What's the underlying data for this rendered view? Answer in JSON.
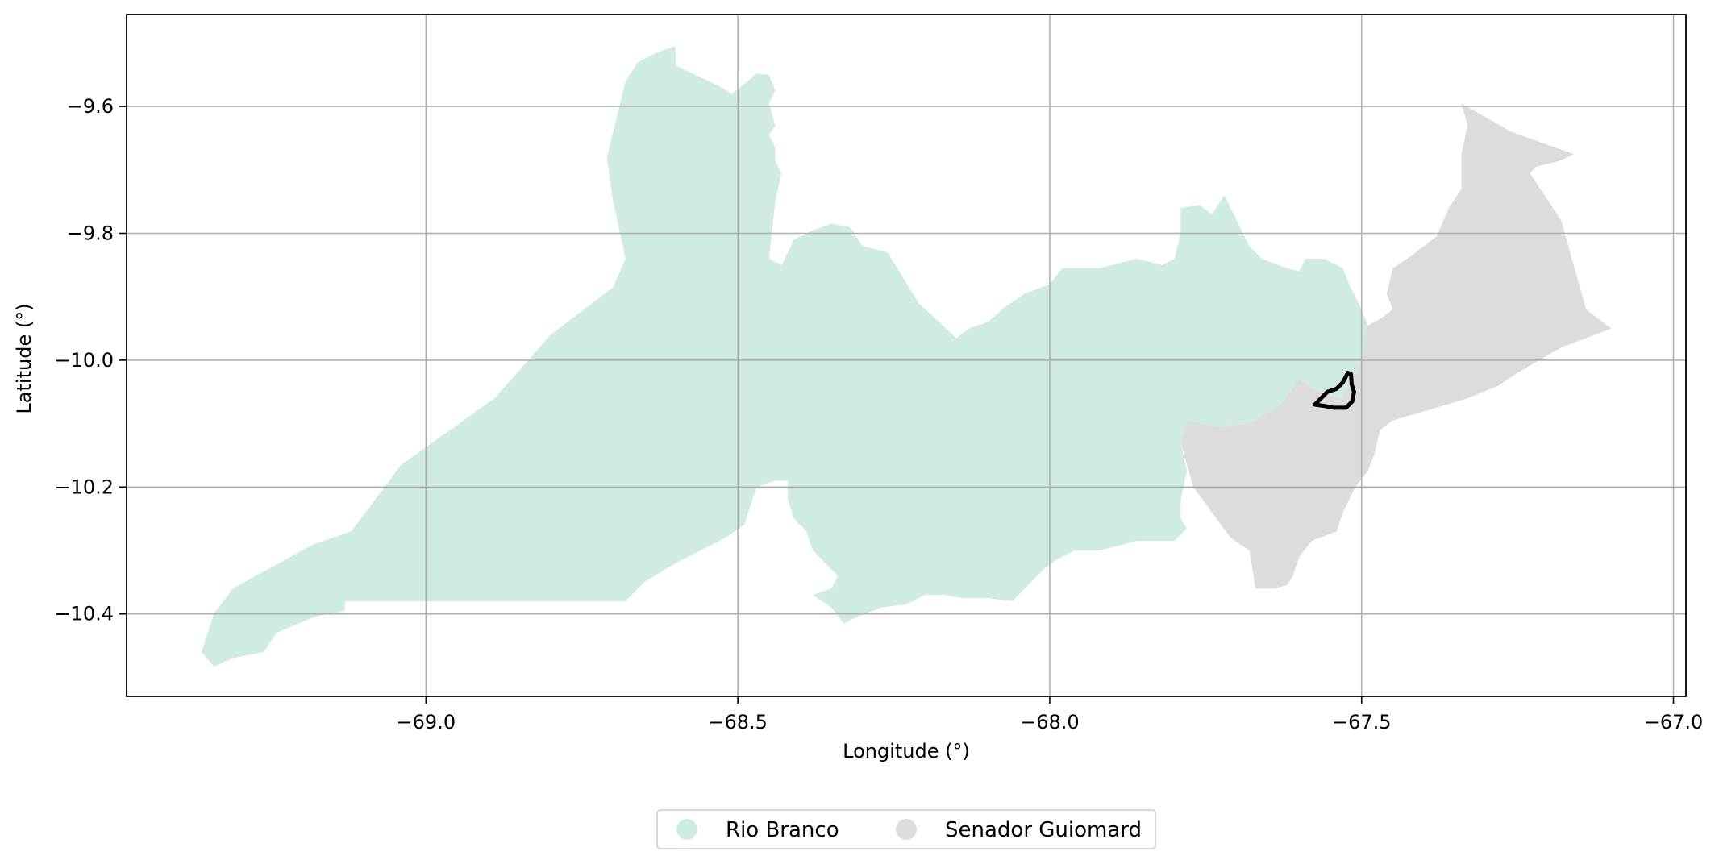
{
  "chart_data": {
    "type": "map",
    "xlabel": "Longitude (°)",
    "ylabel": "Latitude (°)",
    "xlim": [
      -69.48,
      -66.98
    ],
    "ylim": [
      -10.53,
      -9.455
    ],
    "grid": true,
    "x_ticks": [
      {
        "value": -69.0,
        "label": "−69.0"
      },
      {
        "value": -68.5,
        "label": "−68.5"
      },
      {
        "value": -68.0,
        "label": "−68.0"
      },
      {
        "value": -67.5,
        "label": "−67.5"
      },
      {
        "value": -67.0,
        "label": "−67.0"
      }
    ],
    "y_ticks": [
      {
        "value": -9.6,
        "label": "−9.6"
      },
      {
        "value": -9.8,
        "label": "−9.8"
      },
      {
        "value": -10.0,
        "label": "−10.0"
      },
      {
        "value": -10.2,
        "label": "−10.2"
      },
      {
        "value": -10.4,
        "label": "−10.4"
      }
    ],
    "regions": [
      {
        "name": "Rio Branco",
        "color": "#d0ebdf",
        "polygon": [
          [
            -69.36,
            -10.46
          ],
          [
            -69.34,
            -10.4
          ],
          [
            -69.31,
            -10.36
          ],
          [
            -69.18,
            -10.29
          ],
          [
            -69.12,
            -10.27
          ],
          [
            -69.04,
            -10.165
          ],
          [
            -68.89,
            -10.06
          ],
          [
            -68.8,
            -9.96
          ],
          [
            -68.7,
            -9.885
          ],
          [
            -68.68,
            -9.84
          ],
          [
            -68.7,
            -9.75
          ],
          [
            -68.71,
            -9.68
          ],
          [
            -68.68,
            -9.56
          ],
          [
            -68.66,
            -9.53
          ],
          [
            -68.63,
            -9.515
          ],
          [
            -68.6,
            -9.505
          ],
          [
            -68.6,
            -9.535
          ],
          [
            -68.53,
            -9.568
          ],
          [
            -68.51,
            -9.58
          ],
          [
            -68.49,
            -9.565
          ],
          [
            -68.47,
            -9.548
          ],
          [
            -68.45,
            -9.55
          ],
          [
            -68.44,
            -9.575
          ],
          [
            -68.45,
            -9.595
          ],
          [
            -68.44,
            -9.63
          ],
          [
            -68.45,
            -9.645
          ],
          [
            -68.44,
            -9.665
          ],
          [
            -68.44,
            -9.686
          ],
          [
            -68.43,
            -9.705
          ],
          [
            -68.44,
            -9.75
          ],
          [
            -68.45,
            -9.84
          ],
          [
            -68.43,
            -9.85
          ],
          [
            -68.41,
            -9.81
          ],
          [
            -68.38,
            -9.795
          ],
          [
            -68.35,
            -9.785
          ],
          [
            -68.32,
            -9.79
          ],
          [
            -68.3,
            -9.82
          ],
          [
            -68.26,
            -9.83
          ],
          [
            -68.21,
            -9.91
          ],
          [
            -68.15,
            -9.965
          ],
          [
            -68.13,
            -9.95
          ],
          [
            -68.1,
            -9.94
          ],
          [
            -68.07,
            -9.915
          ],
          [
            -68.04,
            -9.895
          ],
          [
            -68.0,
            -9.88
          ],
          [
            -67.98,
            -9.855
          ],
          [
            -67.92,
            -9.855
          ],
          [
            -67.86,
            -9.84
          ],
          [
            -67.82,
            -9.85
          ],
          [
            -67.8,
            -9.84
          ],
          [
            -67.79,
            -9.8
          ],
          [
            -67.79,
            -9.76
          ],
          [
            -67.76,
            -9.755
          ],
          [
            -67.74,
            -9.77
          ],
          [
            -67.72,
            -9.74
          ],
          [
            -67.7,
            -9.78
          ],
          [
            -67.68,
            -9.82
          ],
          [
            -67.66,
            -9.84
          ],
          [
            -67.62,
            -9.855
          ],
          [
            -67.6,
            -9.86
          ],
          [
            -67.59,
            -9.84
          ],
          [
            -67.56,
            -9.84
          ],
          [
            -67.53,
            -9.855
          ],
          [
            -67.52,
            -9.88
          ],
          [
            -67.51,
            -9.9
          ],
          [
            -67.5,
            -9.92
          ],
          [
            -67.49,
            -9.945
          ],
          [
            -67.49,
            -10.0
          ],
          [
            -67.5,
            -10.03
          ],
          [
            -67.53,
            -10.06
          ],
          [
            -67.57,
            -10.05
          ],
          [
            -67.6,
            -10.03
          ],
          [
            -67.63,
            -10.07
          ],
          [
            -67.68,
            -10.1
          ],
          [
            -67.73,
            -10.105
          ],
          [
            -67.78,
            -10.095
          ],
          [
            -67.79,
            -10.13
          ],
          [
            -67.78,
            -10.175
          ],
          [
            -67.79,
            -10.22
          ],
          [
            -67.79,
            -10.25
          ],
          [
            -67.78,
            -10.265
          ],
          [
            -67.8,
            -10.285
          ],
          [
            -67.86,
            -10.285
          ],
          [
            -67.92,
            -10.3
          ],
          [
            -67.96,
            -10.3
          ],
          [
            -67.99,
            -10.315
          ],
          [
            -68.01,
            -10.33
          ],
          [
            -68.04,
            -10.36
          ],
          [
            -68.06,
            -10.38
          ],
          [
            -68.1,
            -10.375
          ],
          [
            -68.14,
            -10.375
          ],
          [
            -68.17,
            -10.37
          ],
          [
            -68.2,
            -10.37
          ],
          [
            -68.23,
            -10.385
          ],
          [
            -68.27,
            -10.39
          ],
          [
            -68.31,
            -10.405
          ],
          [
            -68.33,
            -10.415
          ],
          [
            -68.35,
            -10.39
          ],
          [
            -68.38,
            -10.37
          ],
          [
            -68.35,
            -10.36
          ],
          [
            -68.34,
            -10.34
          ],
          [
            -68.36,
            -10.32
          ],
          [
            -68.38,
            -10.3
          ],
          [
            -68.39,
            -10.27
          ],
          [
            -68.41,
            -10.25
          ],
          [
            -68.42,
            -10.22
          ],
          [
            -68.42,
            -10.19
          ],
          [
            -68.44,
            -10.19
          ],
          [
            -68.47,
            -10.2
          ],
          [
            -68.49,
            -10.26
          ],
          [
            -68.52,
            -10.28
          ],
          [
            -68.56,
            -10.3
          ],
          [
            -68.6,
            -10.32
          ],
          [
            -68.65,
            -10.35
          ],
          [
            -68.68,
            -10.38
          ],
          [
            -69.13,
            -10.38
          ],
          [
            -69.13,
            -10.395
          ],
          [
            -69.18,
            -10.405
          ],
          [
            -69.24,
            -10.43
          ],
          [
            -69.26,
            -10.46
          ],
          [
            -69.31,
            -10.47
          ],
          [
            -69.34,
            -10.483
          ]
        ]
      },
      {
        "name": "Senador Guiomard",
        "color": "#dcdcdc",
        "polygon": [
          [
            -67.5,
            -10.0
          ],
          [
            -67.49,
            -9.945
          ],
          [
            -67.47,
            -9.935
          ],
          [
            -67.45,
            -9.92
          ],
          [
            -67.46,
            -9.895
          ],
          [
            -67.45,
            -9.855
          ],
          [
            -67.42,
            -9.835
          ],
          [
            -67.38,
            -9.805
          ],
          [
            -67.36,
            -9.76
          ],
          [
            -67.34,
            -9.73
          ],
          [
            -67.34,
            -9.675
          ],
          [
            -67.33,
            -9.63
          ],
          [
            -67.34,
            -9.595
          ],
          [
            -67.26,
            -9.64
          ],
          [
            -67.16,
            -9.675
          ],
          [
            -67.18,
            -9.685
          ],
          [
            -67.22,
            -9.695
          ],
          [
            -67.23,
            -9.705
          ],
          [
            -67.18,
            -9.78
          ],
          [
            -67.14,
            -9.92
          ],
          [
            -67.1,
            -9.95
          ],
          [
            -67.18,
            -9.98
          ],
          [
            -67.25,
            -10.02
          ],
          [
            -67.28,
            -10.04
          ],
          [
            -67.33,
            -10.06
          ],
          [
            -67.38,
            -10.075
          ],
          [
            -67.45,
            -10.095
          ],
          [
            -67.47,
            -10.11
          ],
          [
            -67.48,
            -10.15
          ],
          [
            -67.49,
            -10.175
          ],
          [
            -67.51,
            -10.2
          ],
          [
            -67.53,
            -10.24
          ],
          [
            -67.54,
            -10.27
          ],
          [
            -67.58,
            -10.285
          ],
          [
            -67.6,
            -10.31
          ],
          [
            -67.61,
            -10.34
          ],
          [
            -67.62,
            -10.355
          ],
          [
            -67.64,
            -10.36
          ],
          [
            -67.67,
            -10.36
          ],
          [
            -67.68,
            -10.3
          ],
          [
            -67.71,
            -10.28
          ],
          [
            -67.74,
            -10.24
          ],
          [
            -67.77,
            -10.2
          ],
          [
            -67.79,
            -10.13
          ],
          [
            -67.78,
            -10.095
          ],
          [
            -67.73,
            -10.105
          ],
          [
            -67.68,
            -10.1
          ],
          [
            -67.63,
            -10.07
          ],
          [
            -67.6,
            -10.03
          ],
          [
            -67.57,
            -10.05
          ],
          [
            -67.53,
            -10.06
          ]
        ]
      }
    ],
    "highlight": {
      "color": "#000000",
      "outline": [
        [
          -67.575,
          -10.07
        ],
        [
          -67.555,
          -10.05
        ],
        [
          -67.54,
          -10.045
        ],
        [
          -67.53,
          -10.035
        ],
        [
          -67.522,
          -10.02
        ],
        [
          -67.517,
          -10.022
        ],
        [
          -67.516,
          -10.038
        ],
        [
          -67.512,
          -10.05
        ],
        [
          -67.515,
          -10.065
        ],
        [
          -67.525,
          -10.075
        ],
        [
          -67.545,
          -10.075
        ],
        [
          -67.56,
          -10.072
        ]
      ]
    },
    "legend": {
      "placement": "bottom-center",
      "entries": [
        {
          "label": "Rio Branco",
          "color": "#d0ebdf"
        },
        {
          "label": "Senador Guiomard",
          "color": "#dcdcdc"
        }
      ]
    }
  }
}
